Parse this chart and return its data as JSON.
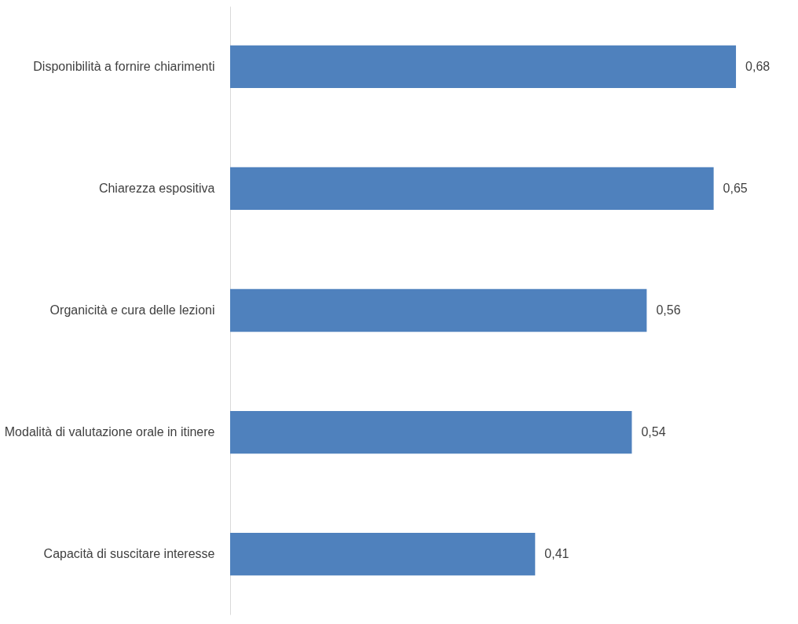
{
  "chart_data": {
    "type": "bar",
    "orientation": "horizontal",
    "categories": [
      "Disponibilità a fornire chiarimenti",
      "Chiarezza espositiva",
      "Organicità e cura delle lezioni",
      "Modalità di valutazione orale in itinere",
      "Capacità di suscitare interesse"
    ],
    "values": [
      0.68,
      0.65,
      0.56,
      0.54,
      0.41
    ],
    "value_labels": [
      "0,68",
      "0,65",
      "0,56",
      "0,54",
      "0,41"
    ],
    "color": "#4f81bd",
    "tick_labels": "y"
  }
}
